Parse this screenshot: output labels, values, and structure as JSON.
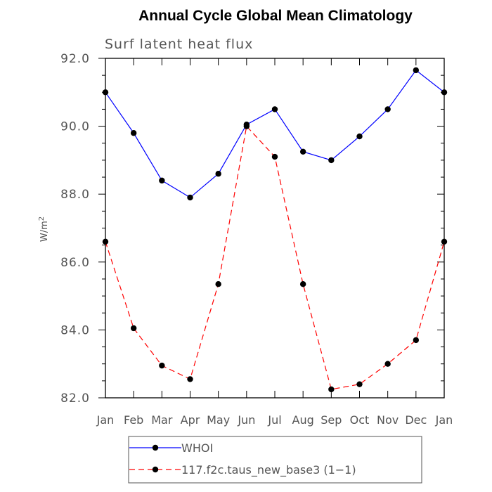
{
  "chart_data": {
    "type": "line",
    "title": "Annual Cycle Global Mean Climatology",
    "subtitle": "Surf latent heat flux",
    "ylabel_main": "W/m",
    "ylabel_sup": "2",
    "categories": [
      "Jan",
      "Feb",
      "Mar",
      "Apr",
      "May",
      "Jun",
      "Jul",
      "Aug",
      "Sep",
      "Oct",
      "Nov",
      "Dec",
      "Jan"
    ],
    "ylim": [
      82.0,
      92.0
    ],
    "yticks": [
      82.0,
      84.0,
      86.0,
      88.0,
      90.0,
      92.0
    ],
    "ytick_labels": [
      "82.0",
      "84.0",
      "86.0",
      "88.0",
      "90.0",
      "92.0"
    ],
    "legend_position": "bottom",
    "series": [
      {
        "name": "WHOI",
        "color": "#0000ff",
        "dash": "solid",
        "values": [
          91.0,
          89.8,
          88.4,
          87.9,
          88.6,
          90.05,
          90.5,
          89.25,
          89.0,
          89.7,
          90.5,
          91.65,
          91.0
        ]
      },
      {
        "name": "117.f2c.taus_new_base3 (1−1)",
        "color": "#ff0000",
        "dash": "dashed",
        "values": [
          86.6,
          84.05,
          82.95,
          82.55,
          85.35,
          90.0,
          89.1,
          85.35,
          82.25,
          82.4,
          83.0,
          83.7,
          86.6
        ]
      }
    ]
  }
}
